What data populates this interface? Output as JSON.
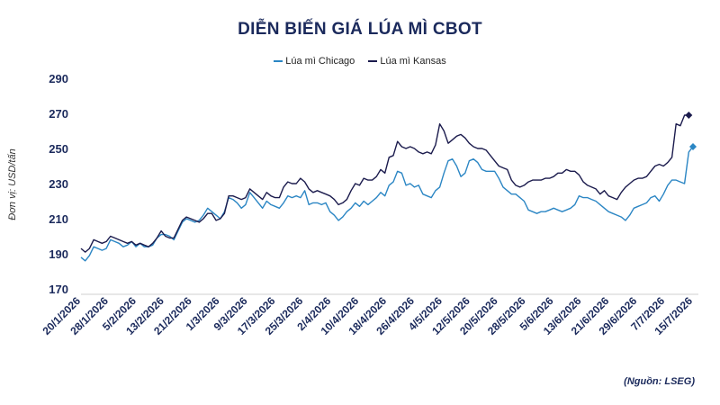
{
  "chart_data": {
    "type": "line",
    "title": "DIỄN BIẾN GIÁ LÚA MÌ CBOT",
    "ylabel": "Đơn vị: USD/tấn",
    "xlabel": "",
    "source": "(Nguồn: LSEG)",
    "ylim": [
      170,
      290
    ],
    "yticks": [
      170,
      190,
      210,
      230,
      250,
      270,
      290
    ],
    "grid": false,
    "legend_position": "top-center",
    "x_tick_labels": [
      "20/1/2026",
      "28/1/2026",
      "5/2/2026",
      "13/2/2026",
      "21/2/2026",
      "1/3/2026",
      "9/3/2026",
      "17/3/2026",
      "25/3/2026",
      "2/4/2026",
      "10/4/2026",
      "18/4/2026",
      "26/4/2026",
      "4/5/2026",
      "12/5/2026",
      "20/5/2026",
      "28/5/2026",
      "5/6/2026",
      "13/6/2026",
      "21/6/2026",
      "29/6/2026",
      "7/7/2026",
      "15/7/2026"
    ],
    "series": [
      {
        "name": "Lúa mì Chicago",
        "color": "#2b86c4",
        "marker": "diamond-last",
        "values": [
          188,
          186,
          189,
          194,
          193,
          192,
          193,
          198,
          197,
          196,
          194,
          195,
          197,
          194,
          196,
          194,
          194,
          195,
          199,
          201,
          201,
          200,
          198,
          203,
          208,
          210,
          209,
          208,
          209,
          212,
          216,
          214,
          212,
          210,
          214,
          222,
          221,
          219,
          216,
          218,
          225,
          222,
          219,
          216,
          220,
          218,
          217,
          216,
          219,
          223,
          222,
          223,
          222,
          226,
          218,
          219,
          219,
          218,
          219,
          214,
          212,
          209,
          211,
          214,
          216,
          219,
          217,
          220,
          218,
          220,
          222,
          225,
          223,
          229,
          231,
          237,
          236,
          229,
          230,
          228,
          229,
          224,
          223,
          222,
          226,
          228,
          236,
          243,
          244,
          240,
          234,
          236,
          243,
          244,
          242,
          238,
          237,
          237,
          237,
          233,
          228,
          226,
          224,
          224,
          222,
          220,
          215,
          214,
          213,
          214,
          214,
          215,
          216,
          215,
          214,
          215,
          216,
          218,
          223,
          222,
          222,
          221,
          220,
          218,
          216,
          214,
          213,
          212,
          211,
          209,
          212,
          216,
          217,
          218,
          219,
          222,
          223,
          220,
          224,
          229,
          232,
          232,
          231,
          230,
          248,
          251
        ]
      },
      {
        "name": "Lúa mì Kansas",
        "color": "#1b1b4d",
        "marker": "diamond-last",
        "values": [
          193,
          191,
          193,
          198,
          197,
          196,
          197,
          200,
          199,
          198,
          197,
          196,
          197,
          195,
          196,
          195,
          194,
          196,
          199,
          203,
          200,
          199,
          199,
          204,
          209,
          211,
          210,
          209,
          208,
          210,
          213,
          213,
          209,
          210,
          213,
          223,
          223,
          222,
          221,
          222,
          227,
          225,
          223,
          221,
          225,
          223,
          222,
          222,
          228,
          231,
          230,
          230,
          233,
          231,
          227,
          225,
          226,
          225,
          224,
          223,
          221,
          218,
          219,
          221,
          226,
          230,
          229,
          233,
          232,
          232,
          234,
          238,
          236,
          245,
          246,
          254,
          251,
          250,
          251,
          250,
          248,
          247,
          248,
          247,
          252,
          264,
          260,
          253,
          255,
          257,
          258,
          256,
          253,
          251,
          250,
          250,
          249,
          246,
          243,
          240,
          239,
          238,
          232,
          229,
          228,
          229,
          231,
          232,
          232,
          232,
          233,
          233,
          234,
          236,
          236,
          238,
          237,
          237,
          235,
          231,
          229,
          228,
          227,
          224,
          226,
          223,
          222,
          221,
          225,
          228,
          230,
          232,
          233,
          233,
          234,
          237,
          240,
          241,
          240,
          242,
          245,
          264,
          263,
          269,
          269
        ]
      }
    ]
  }
}
